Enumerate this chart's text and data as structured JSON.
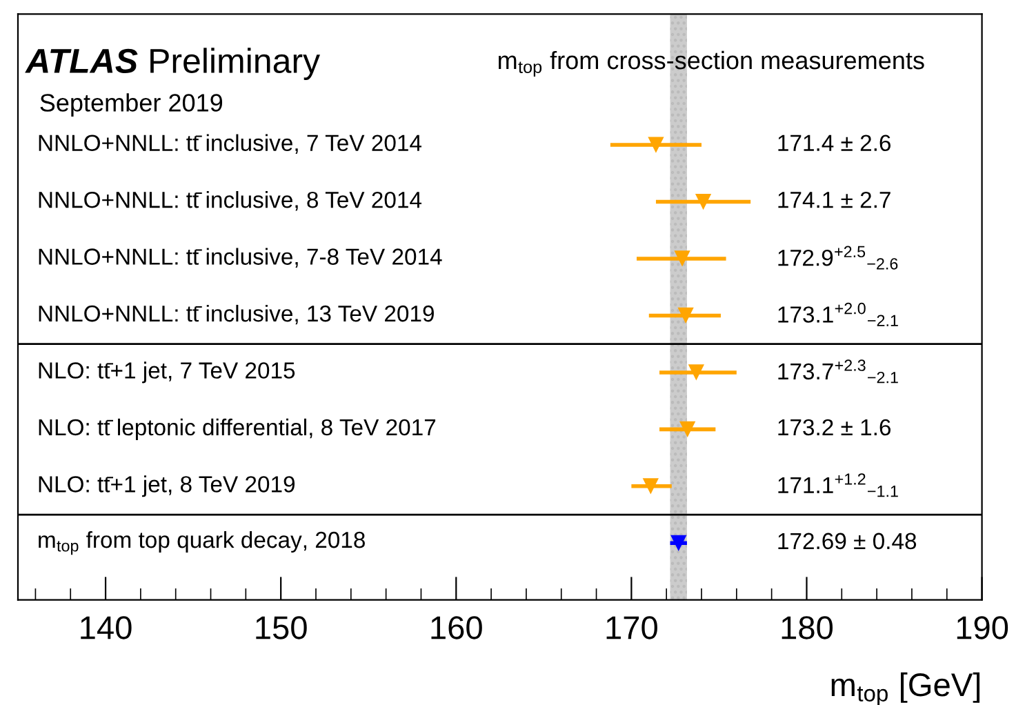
{
  "chart_data": {
    "type": "scatter",
    "orientation": "horizontal",
    "title": "ATLAS",
    "subtitle": "m$_{top}$ from cross-section measurements",
    "annotations": [
      "Preliminary",
      "September 2019",
      "171.4 ± 2.6",
      "174.1 ± 2.7",
      "172.9$^{+2.5}$$_{−2.6}$",
      "173.1$^{+2.0}$$_{−2.1}$",
      "173.7$^{+2.3}$$_{−2.1}$",
      "173.2 ± 1.6",
      "171.1$^{+1.2}$$_{−1.1}$",
      "172.69 ± 0.48"
    ],
    "xlabel": "m$_{top}$ [GeV]",
    "categories": [
      "NNLO+NNLL: tt̄ inclusive, 7 TeV 2014",
      "NNLO+NNLL: tt̄ inclusive, 8 TeV 2014",
      "NNLO+NNLL: tt̄ inclusive, 7-8 TeV 2014",
      "NNLO+NNLL: tt̄ inclusive, 13 TeV 2019",
      "NLO: tt̄+1 jet, 7 TeV 2015",
      "NLO: tt̄ leptonic differential, 8 TeV 2017",
      "NLO: tt̄+1 jet, 8 TeV 2019",
      "m$_{top}$ from top quark decay, 2018"
    ],
    "values": [
      171.4,
      174.1,
      172.9,
      173.1,
      173.7,
      173.2,
      171.1,
      172.69
    ],
    "errors": [
      2.6,
      2.7,
      [
        170.3,
        175.4
      ],
      [
        171.0,
        175.1
      ],
      [
        171.6,
        176.0
      ],
      1.6,
      [
        170.0,
        172.3
      ],
      0.48
    ],
    "colors": [
      "#ffa500",
      "#ffa500",
      "#ffa500",
      "#ffa500",
      "#ffa500",
      "#ffa500",
      "#ffa500",
      "#0000ff"
    ],
    "marker": "triangle",
    "xlim": [
      135,
      190
    ],
    "xticks": [
      140,
      150,
      160,
      170,
      180,
      190
    ],
    "tick_labels": "x",
    "bands": [
      {
        "axis": "x",
        "from": 172.21,
        "to": 173.17,
        "color": "#cccccc"
      }
    ],
    "grid": false,
    "legend": false
  }
}
